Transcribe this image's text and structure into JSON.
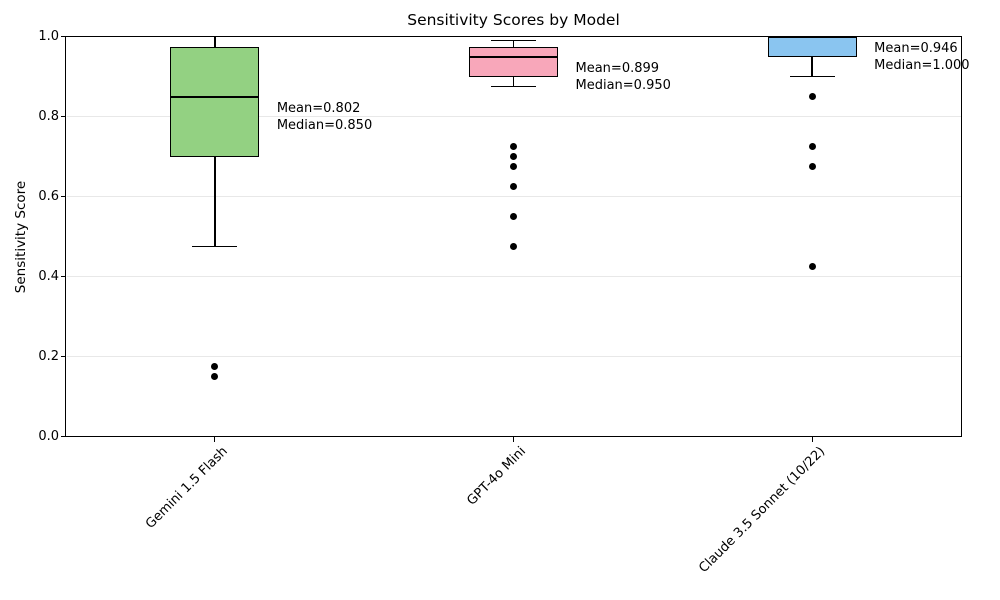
{
  "chart_data": {
    "type": "box",
    "title": "Sensitivity Scores by Model",
    "ylabel": "Sensitivity Score",
    "xlabel": "",
    "ylim": [
      0.0,
      1.0
    ],
    "yticks": [
      0.0,
      0.2,
      0.4,
      0.6,
      0.8,
      1.0
    ],
    "ytick_labels": [
      "0.0",
      "0.2",
      "0.4",
      "0.6",
      "0.8",
      "1.0"
    ],
    "grid": "horizontal",
    "legend": "none",
    "categories": [
      "Gemini 1.5 Flash",
      "GPT-4o Mini",
      "Claude 3.5 Sonnet (10/22)"
    ],
    "series": [
      {
        "name": "Gemini 1.5 Flash",
        "box_color": "#93d182",
        "whisker_low": 0.475,
        "q1": 0.7,
        "median": 0.85,
        "q3": 0.975,
        "whisker_high": 1.0,
        "outliers": [
          0.175,
          0.15
        ],
        "mean": 0.802,
        "annotation_lines": [
          "Mean=0.802",
          "Median=0.850"
        ]
      },
      {
        "name": "GPT-4o Mini",
        "box_color": "#f8a7ba",
        "whisker_low": 0.875,
        "q1": 0.9,
        "median": 0.95,
        "q3": 0.975,
        "whisker_high": 0.99,
        "outliers": [
          0.725,
          0.7,
          0.675,
          0.625,
          0.55,
          0.475
        ],
        "mean": 0.899,
        "annotation_lines": [
          "Mean=0.899",
          "Median=0.950"
        ]
      },
      {
        "name": "Claude 3.5 Sonnet (10/22)",
        "box_color": "#8ac5f0",
        "whisker_low": 0.9,
        "q1": 0.95,
        "median": 1.0,
        "q3": 1.0,
        "whisker_high": 1.0,
        "outliers": [
          0.85,
          0.725,
          0.675,
          0.425
        ],
        "mean": 0.946,
        "annotation_lines": [
          "Mean=0.946",
          "Median=1.000"
        ]
      }
    ]
  }
}
